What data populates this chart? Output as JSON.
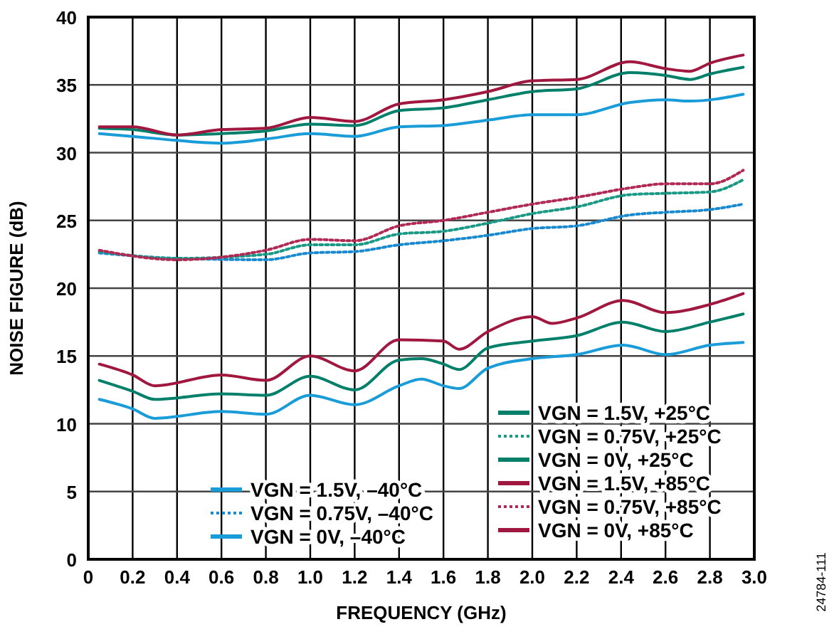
{
  "chart_data": {
    "type": "line",
    "xlabel": "FREQUENCY (GHz)",
    "ylabel": "NOISE FIGURE (dB)",
    "xlim": [
      0,
      3
    ],
    "ylim": [
      0,
      40
    ],
    "xticks": [
      0,
      0.2,
      0.4,
      0.6,
      0.8,
      {
        "value": 1,
        "label": "1.0"
      },
      1.2,
      1.4,
      1.6,
      1.8,
      {
        "value": 2,
        "label": "2.0"
      },
      2.2,
      2.4,
      2.6,
      2.8,
      {
        "value": 3,
        "label": "3.0"
      }
    ],
    "yticks": [
      0,
      5,
      10,
      15,
      20,
      25,
      30,
      35,
      40
    ],
    "grid": true,
    "legend": "bottom",
    "annotations": [
      "24784-111"
    ],
    "series": [
      {
        "name": "VGN = 1.5V, –40°C",
        "color": "#1a9cd8",
        "line_style": "solid",
        "x": [
          0.05,
          0.2,
          0.4,
          0.6,
          0.8,
          1.0,
          1.2,
          1.4,
          1.6,
          1.8,
          2.0,
          2.2,
          2.44,
          2.6,
          2.71,
          2.95
        ],
        "values": [
          31.4,
          31.2,
          30.9,
          30.7,
          31.0,
          31.4,
          31.2,
          31.9,
          32.0,
          32.4,
          32.8,
          32.8,
          33.7,
          33.9,
          33.8,
          34.3
        ]
      },
      {
        "name": "VGN = 0.75V, –40°C",
        "color": "#1a8ad0",
        "line_style": "dotted",
        "x": [
          0.05,
          0.4,
          0.8,
          1.0,
          1.2,
          1.4,
          1.6,
          1.8,
          2.0,
          2.2,
          2.44,
          2.6,
          2.8,
          2.95
        ],
        "values": [
          22.6,
          22.2,
          22.1,
          22.6,
          22.7,
          23.2,
          23.5,
          23.9,
          24.4,
          24.6,
          25.4,
          25.6,
          25.8,
          26.2
        ]
      },
      {
        "name": "VGN = 0V, –40°C",
        "color": "#1a9cd8",
        "line_style": "solid",
        "x": [
          0.05,
          0.2,
          0.3,
          0.6,
          0.8,
          1.0,
          1.2,
          1.4,
          1.5,
          1.6,
          1.67,
          1.8,
          2.0,
          2.2,
          2.41,
          2.6,
          2.8,
          2.95
        ],
        "values": [
          11.8,
          11.1,
          10.4,
          10.9,
          10.7,
          12.1,
          11.4,
          12.8,
          13.3,
          12.8,
          12.6,
          14.1,
          14.8,
          15.1,
          15.8,
          15.1,
          15.8,
          16.0
        ]
      },
      {
        "name": "VGN = 1.5V, +25°C",
        "color": "#00806a",
        "line_style": "solid",
        "x": [
          0.05,
          0.2,
          0.4,
          0.6,
          0.8,
          1.0,
          1.2,
          1.4,
          1.6,
          1.8,
          2.0,
          2.2,
          2.44,
          2.6,
          2.71,
          2.8,
          2.95
        ],
        "values": [
          31.8,
          31.7,
          31.3,
          31.4,
          31.6,
          32.1,
          32.0,
          33.1,
          33.3,
          33.9,
          34.5,
          34.7,
          35.9,
          35.7,
          35.4,
          35.8,
          36.3
        ]
      },
      {
        "name": "VGN = 0.75V, +25°C",
        "color": "#1a9a86",
        "line_style": "dotted",
        "x": [
          0.05,
          0.4,
          0.8,
          1.0,
          1.2,
          1.4,
          1.6,
          1.8,
          2.0,
          2.2,
          2.44,
          2.6,
          2.8,
          2.95
        ],
        "values": [
          22.7,
          22.2,
          22.5,
          23.2,
          23.2,
          24.0,
          24.2,
          24.8,
          25.5,
          26.0,
          26.9,
          27.0,
          27.1,
          28.0
        ]
      },
      {
        "name": "VGN = 0V, +25°C",
        "color": "#00806a",
        "line_style": "solid",
        "x": [
          0.05,
          0.2,
          0.3,
          0.6,
          0.8,
          1.0,
          1.2,
          1.4,
          1.5,
          1.6,
          1.67,
          1.8,
          2.0,
          2.2,
          2.41,
          2.6,
          2.8,
          2.95
        ],
        "values": [
          13.2,
          12.4,
          11.8,
          12.2,
          12.1,
          13.5,
          12.5,
          14.7,
          14.8,
          14.4,
          14.0,
          15.6,
          16.1,
          16.5,
          17.5,
          16.8,
          17.5,
          18.1
        ]
      },
      {
        "name": "VGN = 1.5V, +85°C",
        "color": "#a0173f",
        "line_style": "solid",
        "x": [
          0.05,
          0.2,
          0.4,
          0.6,
          0.8,
          1.0,
          1.2,
          1.4,
          1.6,
          1.8,
          2.0,
          2.2,
          2.44,
          2.6,
          2.71,
          2.8,
          2.95
        ],
        "values": [
          31.9,
          31.9,
          31.3,
          31.7,
          31.8,
          32.6,
          32.3,
          33.6,
          33.9,
          34.5,
          35.3,
          35.4,
          36.7,
          36.2,
          36.0,
          36.6,
          37.2
        ]
      },
      {
        "name": "VGN = 0.75V, +85°C",
        "color": "#b02a55",
        "line_style": "dotted",
        "x": [
          0.05,
          0.4,
          0.8,
          1.0,
          1.2,
          1.4,
          1.6,
          1.8,
          2.0,
          2.2,
          2.44,
          2.6,
          2.8,
          2.95
        ],
        "values": [
          22.8,
          22.1,
          22.8,
          23.6,
          23.5,
          24.6,
          25.0,
          25.6,
          26.2,
          26.7,
          27.4,
          27.7,
          27.7,
          28.7
        ]
      },
      {
        "name": "VGN = 0V, +85°C",
        "color": "#a0173f",
        "line_style": "solid",
        "x": [
          0.05,
          0.2,
          0.3,
          0.6,
          0.8,
          1.0,
          1.2,
          1.4,
          1.6,
          1.67,
          1.8,
          2.0,
          2.09,
          2.2,
          2.41,
          2.6,
          2.8,
          2.95
        ],
        "values": [
          14.4,
          13.6,
          12.8,
          13.6,
          13.2,
          15.0,
          13.9,
          16.2,
          16.1,
          15.5,
          16.8,
          17.9,
          17.4,
          17.8,
          19.1,
          18.2,
          18.8,
          19.6
        ]
      }
    ]
  }
}
